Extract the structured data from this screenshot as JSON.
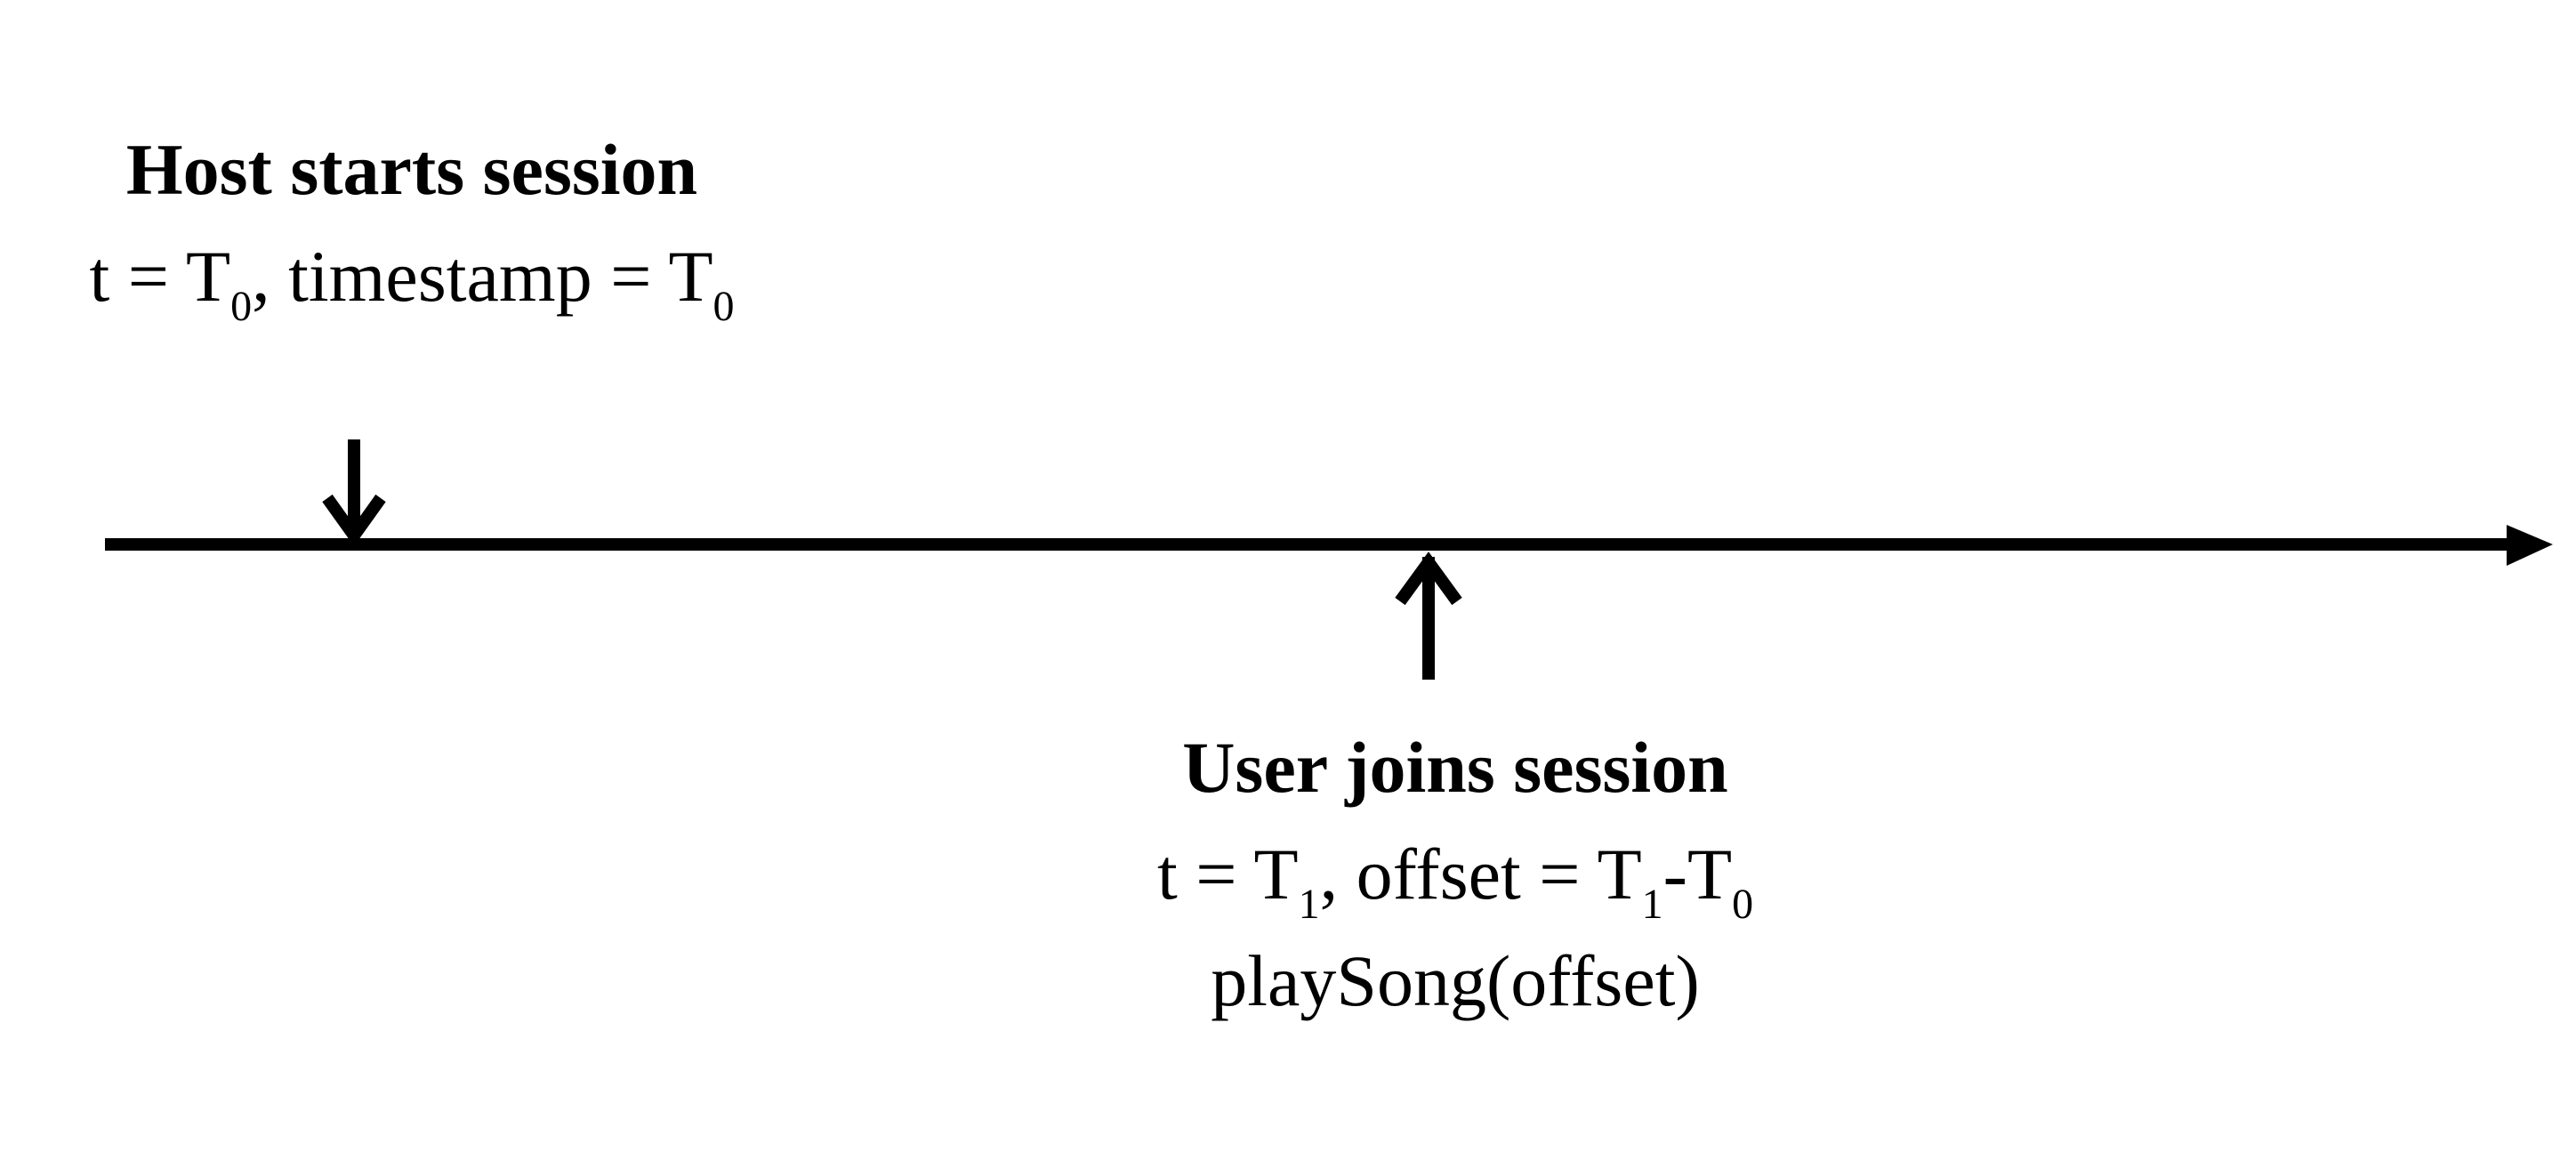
{
  "diagram": {
    "colors": {
      "line": "#000000",
      "background": "#ffffff"
    },
    "host_event": {
      "title": "Host starts session",
      "t_prefix": "t = T",
      "t_sub": "0",
      "mid": ", timestamp = T",
      "ts_sub": "0"
    },
    "user_event": {
      "title": "User joins session",
      "t_prefix": "t = T",
      "t_sub": "1",
      "mid": ", offset = T",
      "off_sub1": "1",
      "dash": "-T",
      "off_sub2": "0",
      "call": "playSong(offset)"
    }
  }
}
